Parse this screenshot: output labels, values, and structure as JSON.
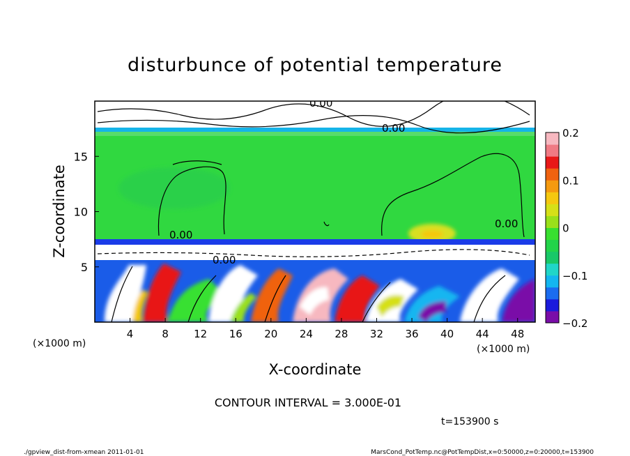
{
  "chart_data": {
    "type": "heatmap",
    "title": "disturbunce of potential temperature",
    "xlabel": "X-coordinate",
    "ylabel": "Z-coordinate",
    "x_unit": "(×1000 m)",
    "y_unit": "(×1000 m)",
    "xlim": [
      0,
      50
    ],
    "ylim": [
      0,
      20
    ],
    "x_ticks": [
      "4",
      "8",
      "12",
      "16",
      "20",
      "24",
      "28",
      "32",
      "36",
      "40",
      "44",
      "48"
    ],
    "y_ticks": [
      "5",
      "10",
      "15"
    ],
    "colorbar": {
      "min": -0.2,
      "max": 0.2,
      "tick_labels": [
        "0.2",
        "0.1",
        "0",
        "−0.1",
        "−0.2"
      ],
      "colors": [
        "#7a0da8",
        "#1a1adc",
        "#1a6cf0",
        "#13b6f0",
        "#20d6c8",
        "#18c868",
        "#22d44a",
        "#38e030",
        "#9ae01a",
        "#d6e018",
        "#f5c810",
        "#f59a10",
        "#f06210",
        "#e81818",
        "#f07a84",
        "#f7b8c0"
      ]
    },
    "contour_labels": [
      "0.00",
      "0.00",
      "0.00",
      "0.00",
      "0.00"
    ],
    "annotations": {
      "contour_interval": "CONTOUR INTERVAL = 3.000E-01",
      "time": "t=153900 s",
      "footer_left": "./gpview_dist-from-xmean 2011-01-01",
      "footer_right": "MarsCond_PotTemp.nc@PotTempDist,x=0:50000,z=0:20000,t=153900"
    }
  }
}
